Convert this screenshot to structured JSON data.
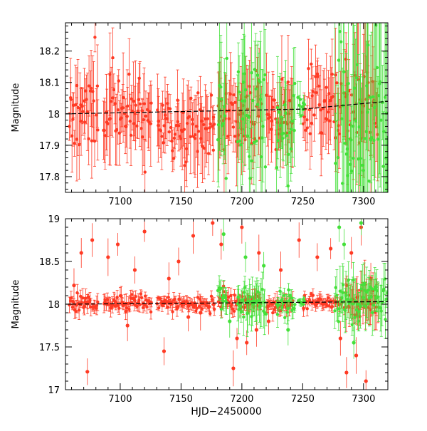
{
  "colors": {
    "series_red": "#ff3a24",
    "series_green": "#44e03a",
    "trend": "#000000"
  },
  "chart_data": [
    {
      "type": "scatter",
      "panel": "top",
      "xlabel": "",
      "ylabel": "Magnitude",
      "xlim": [
        7055,
        7320
      ],
      "ylim": [
        18.29,
        17.75
      ],
      "y_inverted": true,
      "x_ticks": [
        7100,
        7150,
        7200,
        7250,
        7300
      ],
      "y_ticks": [
        17.8,
        17.9,
        18,
        18.1,
        18.2
      ],
      "x_ticks_labeled": true,
      "grid": false,
      "trend_line": {
        "x": [
          7055,
          7250,
          7320
        ],
        "y": [
          18.0,
          18.015,
          18.04
        ]
      },
      "series": [
        {
          "color": "red",
          "segments": [
            {
              "x_range": [
                7058,
                7082
              ],
              "center": 18.02,
              "scatter": 0.14
            },
            {
              "x_range": [
                7086,
                7126
              ],
              "center": 18.0,
              "scatter": 0.13
            },
            {
              "x_range": [
                7130,
                7178
              ],
              "center": 17.96,
              "scatter": 0.11
            },
            {
              "x_range": [
                7180,
                7216
              ],
              "center": 18.0,
              "scatter": 0.14
            },
            {
              "x_range": [
                7220,
                7242
              ],
              "center": 18.0,
              "scatter": 0.13
            },
            {
              "x_range": [
                7250,
                7282
              ],
              "center": 18.02,
              "scatter": 0.13
            },
            {
              "x_range": [
                7284,
                7312
              ],
              "center": 18.04,
              "scatter": 0.2
            }
          ]
        },
        {
          "color": "green",
          "segments": [
            {
              "x_range": [
                7180,
                7188
              ],
              "center": 18.0,
              "scatter": 0.18
            },
            {
              "x_range": [
                7196,
                7220
              ],
              "center": 18.0,
              "scatter": 0.2
            },
            {
              "x_range": [
                7228,
                7244
              ],
              "center": 17.98,
              "scatter": 0.16
            },
            {
              "x_range": [
                7246,
                7252
              ],
              "center": 18.02,
              "scatter": 0.05
            },
            {
              "x_range": [
                7276,
                7320
              ],
              "center": 18.0,
              "scatter": 0.4
            }
          ]
        }
      ]
    },
    {
      "type": "scatter",
      "panel": "bottom",
      "xlabel": "HJD−2450000",
      "ylabel": "Magnitude",
      "xlim": [
        7055,
        7320
      ],
      "ylim": [
        19,
        17
      ],
      "y_inverted": true,
      "x_ticks": [
        7100,
        7150,
        7200,
        7250,
        7300
      ],
      "y_ticks": [
        17,
        17.5,
        18,
        18.5,
        19
      ],
      "y_tick_labels": [
        "17",
        "17.5",
        "18",
        "18.5",
        "19"
      ],
      "grid": false,
      "trend_line": {
        "x": [
          7055,
          7320
        ],
        "y": [
          18.0,
          18.03
        ]
      },
      "series": [
        {
          "color": "red",
          "segments": [
            {
              "x_range": [
                7058,
                7082
              ],
              "center": 18.0,
              "scatter": 0.1
            },
            {
              "x_range": [
                7086,
                7126
              ],
              "center": 18.02,
              "scatter": 0.1
            },
            {
              "x_range": [
                7130,
                7178
              ],
              "center": 18.0,
              "scatter": 0.08
            },
            {
              "x_range": [
                7180,
                7216
              ],
              "center": 18.02,
              "scatter": 0.1
            },
            {
              "x_range": [
                7220,
                7242
              ],
              "center": 18.0,
              "scatter": 0.1
            },
            {
              "x_range": [
                7250,
                7282
              ],
              "center": 18.02,
              "scatter": 0.08
            },
            {
              "x_range": [
                7284,
                7312
              ],
              "center": 18.0,
              "scatter": 0.25
            }
          ],
          "outliers": [
            [
              7073,
              17.21
            ],
            [
              7062,
              18.22
            ],
            [
              7068,
              18.6
            ],
            [
              7077,
              18.75
            ],
            [
              7090,
              18.55
            ],
            [
              7098,
              18.7
            ],
            [
              7106,
              17.75
            ],
            [
              7112,
              18.4
            ],
            [
              7120,
              18.85
            ],
            [
              7136,
              17.45
            ],
            [
              7140,
              18.3
            ],
            [
              7148,
              18.5
            ],
            [
              7156,
              17.85
            ],
            [
              7160,
              18.8
            ],
            [
              7166,
              17.9
            ],
            [
              7176,
              18.95
            ],
            [
              7183,
              18.7
            ],
            [
              7193,
              17.25
            ],
            [
              7196,
              17.6
            ],
            [
              7200,
              18.9
            ],
            [
              7204,
              17.55
            ],
            [
              7212,
              17.7
            ],
            [
              7214,
              18.6
            ],
            [
              7222,
              17.8
            ],
            [
              7232,
              18.4
            ],
            [
              7247,
              18.75
            ],
            [
              7262,
              18.55
            ],
            [
              7273,
              18.65
            ],
            [
              7281,
              17.6
            ],
            [
              7286,
              17.2
            ],
            [
              7290,
              18.6
            ],
            [
              7294,
              17.4
            ],
            [
              7298,
              18.9
            ],
            [
              7302,
              17.1
            ],
            [
              7306,
              18.3
            ]
          ]
        },
        {
          "color": "green",
          "segments": [
            {
              "x_range": [
                7180,
                7188
              ],
              "center": 18.05,
              "scatter": 0.2
            },
            {
              "x_range": [
                7196,
                7220
              ],
              "center": 18.05,
              "scatter": 0.25
            },
            {
              "x_range": [
                7228,
                7244
              ],
              "center": 18.0,
              "scatter": 0.15
            },
            {
              "x_range": [
                7246,
                7252
              ],
              "center": 18.02,
              "scatter": 0.04
            },
            {
              "x_range": [
                7276,
                7320
              ],
              "center": 18.05,
              "scatter": 0.3
            }
          ],
          "outliers": [
            [
              7185,
              18.82
            ],
            [
              7190,
              17.8
            ],
            [
              7203,
              18.55
            ],
            [
              7218,
              18.45
            ],
            [
              7238,
              17.7
            ],
            [
              7280,
              18.9
            ],
            [
              7284,
              18.7
            ],
            [
              7292,
              17.55
            ],
            [
              7298,
              18.95
            ],
            [
              7310,
              18.2
            ]
          ]
        }
      ]
    }
  ]
}
